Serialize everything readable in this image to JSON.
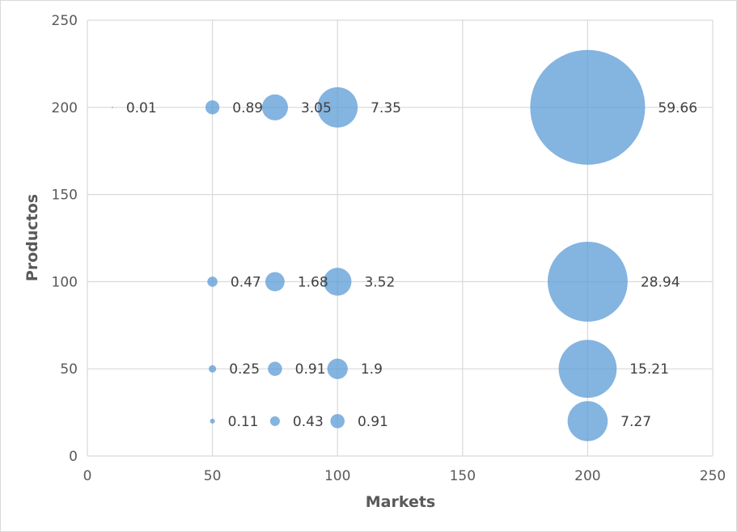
{
  "chart_data": {
    "type": "scatter",
    "title": "",
    "xlabel": "Markets",
    "ylabel": "Productos",
    "xlim": [
      0,
      250
    ],
    "ylim": [
      0,
      250
    ],
    "x_ticks": [
      0,
      50,
      100,
      150,
      200,
      250
    ],
    "y_ticks": [
      0,
      50,
      100,
      150,
      200,
      250
    ],
    "grid": true,
    "bubble_color": "#5b9bd5",
    "points": [
      {
        "x": 10,
        "y": 200,
        "size": 0.01,
        "label": "0.01"
      },
      {
        "x": 50,
        "y": 200,
        "size": 0.89,
        "label": "0.89"
      },
      {
        "x": 75,
        "y": 200,
        "size": 3.05,
        "label": "3.05"
      },
      {
        "x": 100,
        "y": 200,
        "size": 7.35,
        "label": "7.35"
      },
      {
        "x": 200,
        "y": 200,
        "size": 59.66,
        "label": "59.66"
      },
      {
        "x": 50,
        "y": 100,
        "size": 0.47,
        "label": "0.47"
      },
      {
        "x": 75,
        "y": 100,
        "size": 1.68,
        "label": "1.68"
      },
      {
        "x": 100,
        "y": 100,
        "size": 3.52,
        "label": "3.52"
      },
      {
        "x": 200,
        "y": 100,
        "size": 28.94,
        "label": "28.94"
      },
      {
        "x": 50,
        "y": 50,
        "size": 0.25,
        "label": "0.25"
      },
      {
        "x": 75,
        "y": 50,
        "size": 0.91,
        "label": "0.91"
      },
      {
        "x": 100,
        "y": 50,
        "size": 1.9,
        "label": "1.9"
      },
      {
        "x": 200,
        "y": 50,
        "size": 15.21,
        "label": "15.21"
      },
      {
        "x": 50,
        "y": 20,
        "size": 0.11,
        "label": "0.11"
      },
      {
        "x": 75,
        "y": 20,
        "size": 0.43,
        "label": "0.43"
      },
      {
        "x": 100,
        "y": 20,
        "size": 0.91,
        "label": "0.91"
      },
      {
        "x": 200,
        "y": 20,
        "size": 7.27,
        "label": "7.27"
      }
    ]
  }
}
